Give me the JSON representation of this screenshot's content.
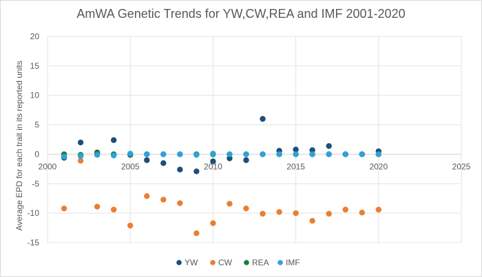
{
  "chart_data": {
    "type": "scatter",
    "title": "AmWA Genetic Trends  for YW,CW,REA and IMF 2001-2020",
    "xlabel": "",
    "ylabel": "Average EPD for each trait in its reported units",
    "xlim": [
      2000,
      2025
    ],
    "ylim": [
      -15,
      20
    ],
    "x_ticks": [
      "2000",
      "2005",
      "2010",
      "2015",
      "2020",
      "2025"
    ],
    "y_ticks": [
      "-15",
      "-10",
      "-5",
      "0",
      "5",
      "10",
      "15",
      "20"
    ],
    "grid": true,
    "legend_position": "bottom",
    "series": [
      {
        "name": "YW",
        "color": "#1f4e79",
        "points": [
          [
            2001,
            -0.6
          ],
          [
            2002,
            2.0
          ],
          [
            2003,
            0.3
          ],
          [
            2004,
            2.4
          ],
          [
            2005,
            -0.1
          ],
          [
            2006,
            -1.0
          ],
          [
            2007,
            -1.5
          ],
          [
            2008,
            -2.6
          ],
          [
            2009,
            -2.9
          ],
          [
            2010,
            -1.2
          ],
          [
            2011,
            -0.7
          ],
          [
            2012,
            -1.0
          ],
          [
            2013,
            6.0
          ],
          [
            2014,
            0.6
          ],
          [
            2015,
            0.8
          ],
          [
            2016,
            0.7
          ],
          [
            2017,
            1.4
          ],
          [
            2018,
            0.0
          ],
          [
            2019,
            0.0
          ],
          [
            2020,
            0.5
          ]
        ]
      },
      {
        "name": "CW",
        "color": "#ed7d31",
        "points": [
          [
            2001,
            -9.2
          ],
          [
            2002,
            -1.1
          ],
          [
            2003,
            -8.9
          ],
          [
            2004,
            -9.4
          ],
          [
            2005,
            -12.1
          ],
          [
            2006,
            -7.1
          ],
          [
            2007,
            -7.7
          ],
          [
            2008,
            -8.3
          ],
          [
            2009,
            -13.4
          ],
          [
            2010,
            -11.7
          ],
          [
            2011,
            -8.4
          ],
          [
            2012,
            -9.2
          ],
          [
            2013,
            -10.1
          ],
          [
            2014,
            -9.8
          ],
          [
            2015,
            -10.0
          ],
          [
            2016,
            -11.3
          ],
          [
            2017,
            -10.1
          ],
          [
            2018,
            -9.4
          ],
          [
            2019,
            -9.9
          ],
          [
            2020,
            -9.4
          ]
        ]
      },
      {
        "name": "REA",
        "color": "#1e7b34",
        "points": [
          [
            2001,
            0.0
          ],
          [
            2002,
            -0.1
          ],
          [
            2003,
            0.2
          ],
          [
            2004,
            0.0
          ],
          [
            2005,
            0.0
          ],
          [
            2006,
            0.0
          ],
          [
            2007,
            0.0
          ],
          [
            2008,
            0.0
          ],
          [
            2009,
            0.0
          ],
          [
            2010,
            0.0
          ],
          [
            2011,
            0.0
          ],
          [
            2012,
            0.0
          ],
          [
            2013,
            0.0
          ],
          [
            2014,
            0.0
          ],
          [
            2015,
            0.0
          ],
          [
            2016,
            0.0
          ],
          [
            2017,
            0.0
          ],
          [
            2018,
            0.0
          ],
          [
            2019,
            0.0
          ],
          [
            2020,
            0.0
          ]
        ]
      },
      {
        "name": "IMF",
        "color": "#2ea3d8",
        "points": [
          [
            2001,
            -0.4
          ],
          [
            2002,
            -0.3
          ],
          [
            2003,
            -0.1
          ],
          [
            2004,
            -0.2
          ],
          [
            2005,
            0.1
          ],
          [
            2006,
            0.0
          ],
          [
            2007,
            0.0
          ],
          [
            2008,
            0.0
          ],
          [
            2009,
            -0.1
          ],
          [
            2010,
            0.1
          ],
          [
            2011,
            0.0
          ],
          [
            2012,
            0.0
          ],
          [
            2013,
            0.0
          ],
          [
            2014,
            0.0
          ],
          [
            2015,
            0.0
          ],
          [
            2016,
            0.0
          ],
          [
            2017,
            0.0
          ],
          [
            2018,
            0.0
          ],
          [
            2019,
            0.0
          ],
          [
            2020,
            0.0
          ]
        ]
      }
    ]
  }
}
